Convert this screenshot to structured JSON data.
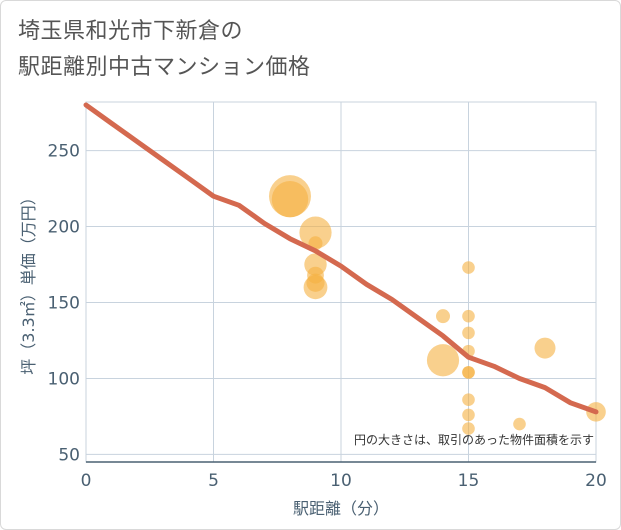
{
  "title_line1": "埼玉県和光市下新倉の",
  "title_line2": "駅距離別中古マンション価格",
  "chart_data": {
    "type": "scatter",
    "title": "埼玉県和光市下新倉の駅距離別中古マンション価格",
    "xlabel": "駅距離（分）",
    "ylabel": "坪（3.3㎡）単価（万円）",
    "xlim": [
      0,
      20
    ],
    "ylim": [
      45,
      282
    ],
    "xticks": [
      0,
      5,
      10,
      15,
      20
    ],
    "yticks": [
      50,
      100,
      150,
      200,
      250
    ],
    "grid": true,
    "annotation": "円の大きさは、取引のあった物件面積を示す",
    "colors": {
      "bubble": "#f5b041",
      "trend": "#d4694f",
      "grid": "#c8d3de",
      "axis": "#4a6072"
    },
    "trend_line": {
      "x": [
        0,
        1,
        2,
        3,
        4,
        5,
        6,
        7,
        8,
        9,
        10,
        11,
        12,
        13,
        14,
        15,
        16,
        17,
        18,
        19,
        20
      ],
      "y": [
        280,
        268,
        256,
        244,
        232,
        220,
        214,
        202,
        192,
        184,
        174,
        162,
        152,
        140,
        128,
        114,
        108,
        100,
        94,
        84,
        78
      ]
    },
    "points": [
      {
        "x": 8,
        "y": 220,
        "size": 3.0
      },
      {
        "x": 8,
        "y": 218,
        "size": 2.6
      },
      {
        "x": 9,
        "y": 196,
        "size": 2.3
      },
      {
        "x": 9,
        "y": 189,
        "size": 1.0
      },
      {
        "x": 9,
        "y": 175,
        "size": 1.6
      },
      {
        "x": 9,
        "y": 168,
        "size": 1.2
      },
      {
        "x": 9,
        "y": 163,
        "size": 1.3
      },
      {
        "x": 9,
        "y": 160,
        "size": 1.7
      },
      {
        "x": 14,
        "y": 141,
        "size": 1.0
      },
      {
        "x": 14,
        "y": 112,
        "size": 2.3
      },
      {
        "x": 15,
        "y": 173,
        "size": 0.9
      },
      {
        "x": 15,
        "y": 141,
        "size": 0.9
      },
      {
        "x": 15,
        "y": 130,
        "size": 0.9
      },
      {
        "x": 15,
        "y": 118,
        "size": 0.9
      },
      {
        "x": 15,
        "y": 104,
        "size": 0.9
      },
      {
        "x": 15,
        "y": 104,
        "size": 0.9
      },
      {
        "x": 15,
        "y": 86,
        "size": 0.9
      },
      {
        "x": 15,
        "y": 76,
        "size": 0.9
      },
      {
        "x": 15,
        "y": 67,
        "size": 0.9
      },
      {
        "x": 17,
        "y": 70,
        "size": 0.9
      },
      {
        "x": 18,
        "y": 120,
        "size": 1.5
      },
      {
        "x": 20,
        "y": 78,
        "size": 1.4
      }
    ]
  }
}
